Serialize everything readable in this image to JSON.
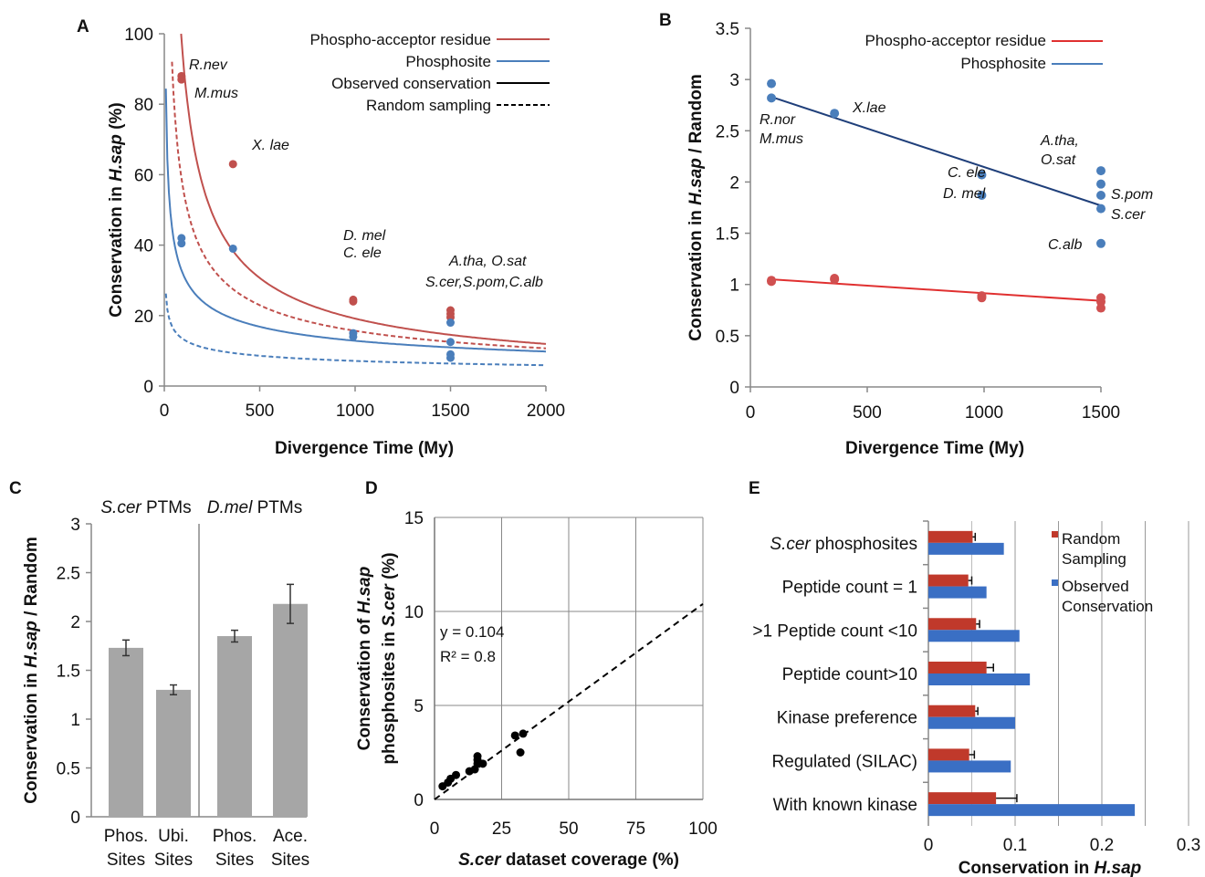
{
  "chart_data": [
    {
      "panel": "A",
      "type": "scatter",
      "xlabel": "Divergence Time (My)",
      "ylabel": "Conservation in H.sap (%)",
      "xlim": [
        0,
        2000
      ],
      "ylim": [
        0,
        100
      ],
      "xticks": [
        "0",
        "500",
        "1000",
        "1500",
        "2000"
      ],
      "yticks": [
        "0",
        "20",
        "40",
        "60",
        "80",
        "100"
      ],
      "legend_position": "top-right",
      "legend": [
        "Phospho-acceptor residue",
        "Phosphosite",
        "Observed conservation",
        "Random sampling"
      ],
      "colors": {
        "residue": "#c0504d",
        "phosphosite": "#4a7ebb",
        "black": "#000000"
      },
      "series": [
        {
          "name": "Phospho-acceptor residue",
          "points": [
            [
              90,
              88
            ],
            [
              90,
              87
            ],
            [
              360,
              63
            ],
            [
              990,
              24.5
            ],
            [
              990,
              24
            ],
            [
              1500,
              21.5
            ],
            [
              1500,
              20.5
            ],
            [
              1500,
              19.5
            ]
          ]
        },
        {
          "name": "Phosphosite",
          "points": [
            [
              90,
              42
            ],
            [
              90,
              40.5
            ],
            [
              360,
              39
            ],
            [
              990,
              15
            ],
            [
              990,
              14
            ],
            [
              1500,
              18
            ],
            [
              1500,
              12.5
            ],
            [
              1500,
              9
            ],
            [
              1500,
              8
            ]
          ]
        }
      ],
      "annotations": [
        "R.nev",
        "M.mus",
        "X. lae",
        "D. mel",
        "C. ele",
        "A.tha, O.sat",
        "S.cer,S.pom,C.alb"
      ]
    },
    {
      "panel": "B",
      "type": "scatter",
      "xlabel": "Divergence Time (My)",
      "ylabel_italic": "H.sap",
      "ylabel_prefix": "Conservation in",
      "ylabel_suffix": "/ Random",
      "xlim": [
        0,
        1500
      ],
      "ylim": [
        0,
        3.5
      ],
      "xticks": [
        "0",
        "500",
        "1000",
        "1500"
      ],
      "yticks": [
        "0",
        "0.5",
        "1",
        "1.5",
        "2",
        "2.5",
        "3",
        "3.5"
      ],
      "legend_position": "top-right",
      "legend": [
        "Phospho-acceptor residue",
        "Phosphosite"
      ],
      "colors": {
        "residue": "#e03030",
        "phosphosite": "#4a7ebb",
        "phos_trend": "#1f3f7a"
      },
      "series": [
        {
          "name": "Phosphosite",
          "points": [
            [
              90,
              2.96
            ],
            [
              90,
              2.82
            ],
            [
              360,
              2.67
            ],
            [
              990,
              2.07
            ],
            [
              990,
              1.87
            ],
            [
              1500,
              2.11
            ],
            [
              1500,
              1.98
            ],
            [
              1500,
              1.87
            ],
            [
              1500,
              1.74
            ],
            [
              1500,
              1.4
            ]
          ],
          "trend": [
            [
              90,
              2.83
            ],
            [
              1500,
              1.77
            ]
          ]
        },
        {
          "name": "Phospho-acceptor residue",
          "points": [
            [
              90,
              1.04
            ],
            [
              90,
              1.03
            ],
            [
              360,
              1.06
            ],
            [
              360,
              1.05
            ],
            [
              990,
              0.89
            ],
            [
              990,
              0.87
            ],
            [
              1500,
              0.87
            ],
            [
              1500,
              0.83
            ],
            [
              1500,
              0.77
            ]
          ],
          "trend": [
            [
              90,
              1.05
            ],
            [
              1500,
              0.84
            ]
          ]
        }
      ],
      "annotations": [
        "R.nor",
        "M.mus",
        "X.lae",
        "C. ele",
        "D. mel",
        "A.tha,",
        "O.sat",
        "S.pom",
        "S.cer",
        "C.alb"
      ]
    },
    {
      "panel": "C",
      "type": "bar",
      "ylabel_prefix": "Conservation in",
      "ylabel_italic": "H.sap",
      "ylabel_suffix": "/ Random",
      "ylim": [
        0,
        3
      ],
      "yticks": [
        "0",
        "0.5",
        "1",
        "1.5",
        "2",
        "2.5",
        "3"
      ],
      "group_titles": [
        [
          "S.cer",
          " PTMs"
        ],
        [
          "D.mel",
          " PTMs"
        ]
      ],
      "categories": [
        [
          "Phos.",
          "Sites"
        ],
        [
          "Ubi.",
          "Sites"
        ],
        [
          "Phos.",
          "Sites"
        ],
        [
          "Ace.",
          "Sites"
        ]
      ],
      "values": [
        1.73,
        1.3,
        1.85,
        2.18
      ],
      "errors": [
        0.08,
        0.05,
        0.06,
        0.2
      ],
      "colors": {
        "bar": "#a6a6a6"
      }
    },
    {
      "panel": "D",
      "type": "scatter",
      "xlabel_italic": "S.cer",
      "xlabel_suffix": " dataset coverage (%)",
      "ylabel_line1": "Conservation of H.sap",
      "ylabel_line2": "phosphosites  in S.cer (%)",
      "xlim": [
        0,
        100
      ],
      "ylim": [
        0,
        15
      ],
      "xticks": [
        "0",
        "25",
        "50",
        "75",
        "100"
      ],
      "yticks": [
        "0",
        "5",
        "10",
        "15"
      ],
      "grid": true,
      "equation": "y = 0.104",
      "r2": "R² = 0.8",
      "points": [
        [
          3,
          0.7
        ],
        [
          5,
          0.9
        ],
        [
          6,
          1.1
        ],
        [
          8,
          1.3
        ],
        [
          13,
          1.5
        ],
        [
          15,
          1.6
        ],
        [
          16,
          1.9
        ],
        [
          16,
          2.1
        ],
        [
          16,
          2.3
        ],
        [
          18,
          1.9
        ],
        [
          30,
          3.4
        ],
        [
          32,
          2.5
        ],
        [
          33,
          3.5
        ]
      ],
      "trend_slope": 0.104,
      "colors": {
        "points": "#000000"
      }
    },
    {
      "panel": "E",
      "type": "bar",
      "orientation": "horizontal",
      "xlabel_prefix": "Conservation in ",
      "xlabel_italic": "H.sap",
      "xlim": [
        0,
        0.3
      ],
      "xticks": [
        "0",
        "0.1",
        "0.2",
        "0.3"
      ],
      "categories": [
        {
          "italic": "S.cer",
          "text": " phosphosites"
        },
        {
          "italic": "",
          "text": "Peptide count = 1"
        },
        {
          "italic": "",
          "text": ">1 Peptide count <10"
        },
        {
          "italic": "",
          "text": "Peptide count>10"
        },
        {
          "italic": "",
          "text": "Kinase preference"
        },
        {
          "italic": "",
          "text": "Regulated (SILAC)"
        },
        {
          "italic": "",
          "text": "With known kinase"
        }
      ],
      "legend_position": "right",
      "series": [
        {
          "name": "Random Sampling",
          "name_lines": [
            "Random",
            "Sampling"
          ],
          "values": [
            0.051,
            0.046,
            0.055,
            0.067,
            0.054,
            0.047,
            0.078
          ],
          "errors": [
            0.003,
            0.004,
            0.004,
            0.008,
            0.003,
            0.006,
            0.024
          ]
        },
        {
          "name": "Observed Conservation",
          "name_lines": [
            "Observed",
            "Conservation"
          ],
          "values": [
            0.087,
            0.067,
            0.105,
            0.117,
            0.1,
            0.095,
            0.238
          ]
        }
      ],
      "colors": {
        "random": "#c0392b",
        "observed": "#3a6fc4"
      }
    }
  ]
}
